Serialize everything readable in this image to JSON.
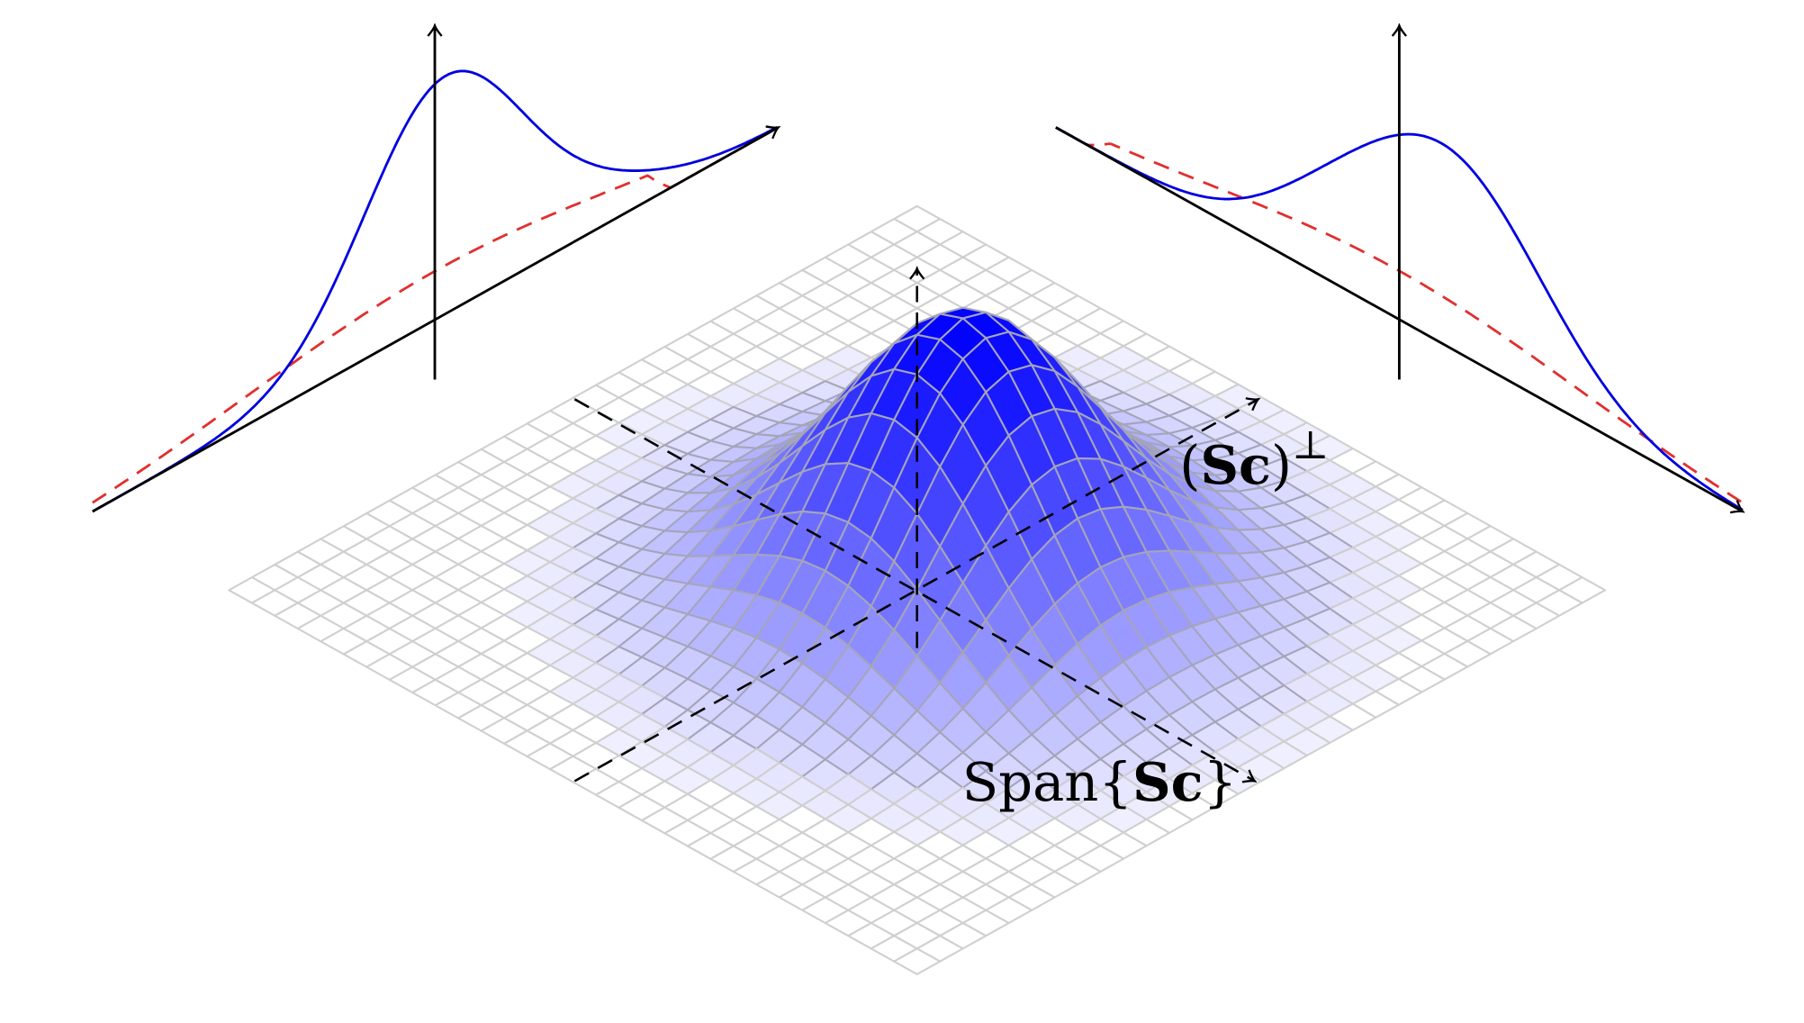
{
  "labels": [
    {
      "parts": [
        "(",
        "Sc",
        ")",
        "⊥"
      ]
    },
    {
      "parts": [
        "Span{",
        "Sc",
        "}"
      ]
    }
  ]
}
